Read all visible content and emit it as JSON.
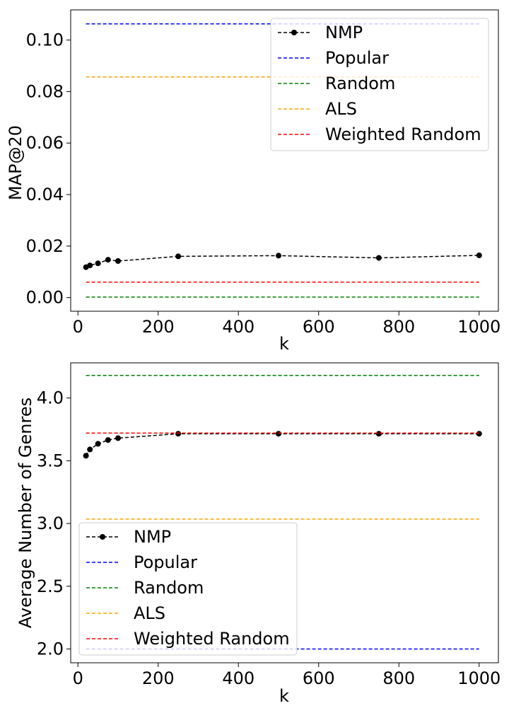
{
  "chart_data": [
    {
      "type": "line",
      "title": "",
      "xlabel": "k",
      "ylabel": "MAP@20",
      "xlim": [
        -18,
        1048
      ],
      "ylim": [
        -0.0053,
        0.1117
      ],
      "xticks": [
        0,
        200,
        400,
        600,
        800,
        1000
      ],
      "xtick_labels": [
        "0",
        "200",
        "400",
        "600",
        "800",
        "1000"
      ],
      "yticks": [
        0.0,
        0.02,
        0.04,
        0.06,
        0.08,
        0.1
      ],
      "ytick_labels": [
        "0.00",
        "0.02",
        "0.04",
        "0.06",
        "0.08",
        "0.10"
      ],
      "grid": false,
      "legend_position": "top-right",
      "series": [
        {
          "name": "NMP",
          "style": "dashed-marker",
          "color": "#000000",
          "x": [
            20,
            30,
            50,
            75,
            100,
            250,
            500,
            750,
            1000
          ],
          "y": [
            0.0118,
            0.0125,
            0.0133,
            0.0147,
            0.0142,
            0.016,
            0.0163,
            0.0154,
            0.0164
          ]
        },
        {
          "name": "Popular",
          "style": "dashed",
          "color": "#0000ff",
          "x": [
            20,
            1000
          ],
          "y": [
            0.1063,
            0.1063
          ]
        },
        {
          "name": "Random",
          "style": "dashed",
          "color": "#008000",
          "x": [
            20,
            1000
          ],
          "y": [
            0.0002,
            0.0002
          ]
        },
        {
          "name": "ALS",
          "style": "dashed",
          "color": "#ffa500",
          "x": [
            20,
            1000
          ],
          "y": [
            0.0857,
            0.0857
          ]
        },
        {
          "name": "Weighted Random",
          "style": "dashed",
          "color": "#ff0000",
          "x": [
            20,
            1000
          ],
          "y": [
            0.006,
            0.006
          ]
        }
      ]
    },
    {
      "type": "line",
      "title": "",
      "xlabel": "k",
      "ylabel": "Average Number of Genres",
      "xlim": [
        -18,
        1048
      ],
      "ylim": [
        1.89,
        4.28
      ],
      "xticks": [
        0,
        200,
        400,
        600,
        800,
        1000
      ],
      "xtick_labels": [
        "0",
        "200",
        "400",
        "600",
        "800",
        "1000"
      ],
      "yticks": [
        2.0,
        2.5,
        3.0,
        3.5,
        4.0
      ],
      "ytick_labels": [
        "2.0",
        "2.5",
        "3.0",
        "3.5",
        "4.0"
      ],
      "grid": false,
      "legend_position": "bottom-left",
      "series": [
        {
          "name": "NMP",
          "style": "dashed-marker",
          "color": "#000000",
          "x": [
            20,
            30,
            50,
            75,
            100,
            250,
            500,
            750,
            1000
          ],
          "y": [
            3.54,
            3.59,
            3.635,
            3.665,
            3.68,
            3.715,
            3.715,
            3.715,
            3.715
          ]
        },
        {
          "name": "Popular",
          "style": "dashed",
          "color": "#0000ff",
          "x": [
            20,
            1000
          ],
          "y": [
            2.0,
            2.0
          ]
        },
        {
          "name": "Random",
          "style": "dashed",
          "color": "#008000",
          "x": [
            20,
            1000
          ],
          "y": [
            4.18,
            4.18
          ]
        },
        {
          "name": "ALS",
          "style": "dashed",
          "color": "#ffa500",
          "x": [
            20,
            1000
          ],
          "y": [
            3.035,
            3.035
          ]
        },
        {
          "name": "Weighted Random",
          "style": "dashed",
          "color": "#ff0000",
          "x": [
            20,
            1000
          ],
          "y": [
            3.72,
            3.72
          ]
        }
      ]
    }
  ]
}
